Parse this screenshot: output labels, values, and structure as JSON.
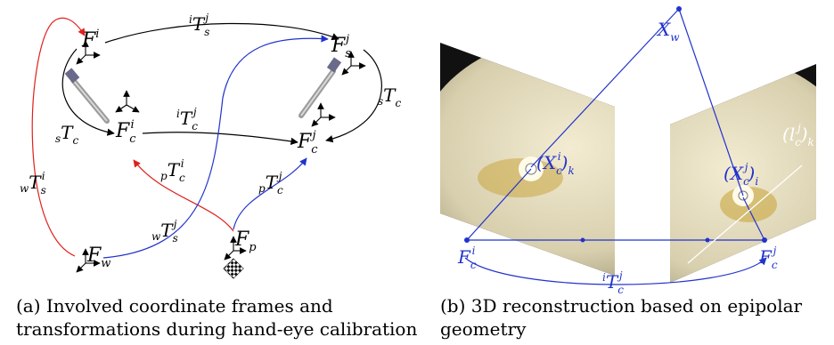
{
  "panel_a": {
    "frames": {
      "F_i": "F",
      "F_i_sup": "i",
      "F_s_j": "F",
      "F_s_j_sub": "s",
      "F_s_j_sup": "j",
      "F_c_i": "F",
      "F_c_i_sub": "c",
      "F_c_i_sup": "i",
      "F_c_j": "F",
      "F_c_j_sub": "c",
      "F_c_j_sup": "j",
      "F_w": "F",
      "F_w_sub": "w",
      "F_p": "F",
      "F_p_sub": "p"
    },
    "transforms": {
      "iTsj": {
        "pre": "i",
        "main": "T",
        "sub": "s",
        "sup": "j"
      },
      "iTcj": {
        "pre": "i",
        "main": "T",
        "sub": "c",
        "sup": "j"
      },
      "sTc_left": {
        "pre": "s",
        "main": "T",
        "sub": "c"
      },
      "sTc_right": {
        "pre": "s",
        "main": "T",
        "sub": "c"
      },
      "wTsi": {
        "pre": "w",
        "main": "T",
        "sub": "s",
        "sup": "i"
      },
      "wTsj": {
        "pre": "w",
        "main": "T",
        "sub": "s",
        "sup": "j"
      },
      "pTci": {
        "pre": "p",
        "main": "T",
        "sub": "c",
        "sup": "i"
      },
      "pTcj": {
        "pre": "p",
        "main": "T",
        "sub": "c",
        "sup": "j"
      }
    },
    "caption": "(a) Involved coordinate frames and transformations during hand-eye calibration"
  },
  "panel_b": {
    "X_w": "X",
    "X_w_sub": "w",
    "F_c_i": "F",
    "F_c_i_sub": "c",
    "F_c_i_sup": "i",
    "F_c_j": "F",
    "F_c_j_sub": "c",
    "F_c_j_sup": "j",
    "X_c_i_k": {
      "main": "X",
      "sub": "c",
      "sup": "i",
      "outer": "k"
    },
    "X_c_j_i": {
      "main": "X",
      "sub": "c",
      "sup": "j",
      "outer": "i"
    },
    "l_c_j_k": {
      "main": "l",
      "sub": "c",
      "sup": "j",
      "outer": "k"
    },
    "iTcj": {
      "pre": "i",
      "main": "T",
      "sub": "c",
      "sup": "j"
    },
    "caption": "(b) 3D reconstruction based on epipolar geometry"
  },
  "colors": {
    "red": "#e0201c",
    "blue": "#2233cc",
    "black": "#000000"
  }
}
